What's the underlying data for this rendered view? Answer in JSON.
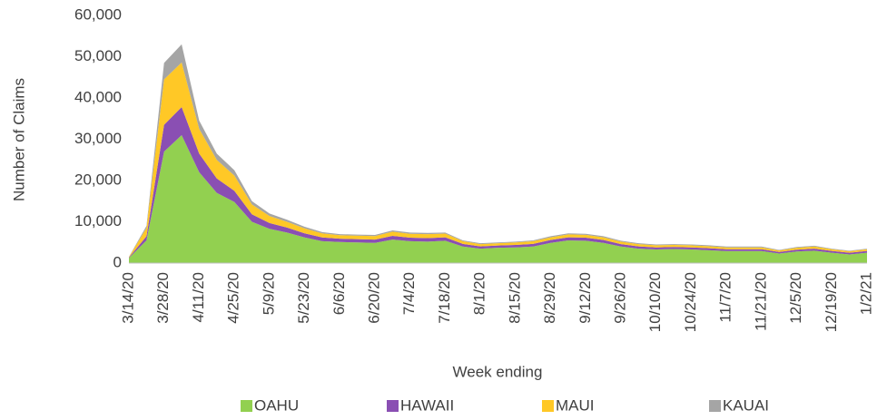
{
  "chart_data": {
    "type": "stacked-area",
    "xlabel": "Week ending",
    "ylabel": "Number of Claims",
    "categories": [
      "3/14/20",
      null,
      "3/28/20",
      null,
      "4/11/20",
      null,
      "4/25/20",
      null,
      "5/9/20",
      null,
      "5/23/20",
      null,
      "6/6/20",
      null,
      "6/20/20",
      null,
      "7/4/20",
      null,
      "7/18/20",
      null,
      "8/1/20",
      null,
      "8/15/20",
      null,
      "8/29/20",
      null,
      "9/12/20",
      null,
      "9/26/20",
      null,
      "10/10/20",
      null,
      "10/24/20",
      null,
      "11/7/20",
      null,
      "11/21/20",
      null,
      "12/5/20",
      null,
      "12/19/20",
      null,
      "1/2/21"
    ],
    "series": [
      {
        "name": "OAHU",
        "color": "#92d050",
        "values": [
          1200,
          5500,
          27000,
          31000,
          22000,
          17000,
          14800,
          10000,
          8300,
          7400,
          6200,
          5300,
          5100,
          5000,
          4900,
          5700,
          5300,
          5200,
          5400,
          4000,
          3500,
          3700,
          3800,
          4000,
          4900,
          5500,
          5400,
          4900,
          4000,
          3500,
          3300,
          3400,
          3300,
          3100,
          2900,
          2900,
          2900,
          2300,
          2800,
          3000,
          2500,
          2100,
          2500
        ]
      },
      {
        "name": "HAWAII",
        "color": "#8a4fb3",
        "values": [
          150,
          1000,
          6500,
          6800,
          4500,
          3500,
          2700,
          1800,
          1400,
          1200,
          1000,
          900,
          800,
          800,
          800,
          900,
          850,
          850,
          850,
          650,
          550,
          550,
          600,
          650,
          700,
          750,
          750,
          700,
          600,
          550,
          500,
          500,
          500,
          500,
          450,
          450,
          450,
          400,
          450,
          500,
          450,
          400,
          450
        ]
      },
      {
        "name": "MAUI",
        "color": "#ffc826",
        "values": [
          100,
          2000,
          11000,
          10800,
          6000,
          4500,
          3700,
          2400,
          1700,
          1400,
          1200,
          1000,
          850,
          850,
          850,
          1000,
          950,
          950,
          900,
          650,
          550,
          550,
          600,
          650,
          650,
          700,
          700,
          650,
          600,
          550,
          500,
          500,
          500,
          500,
          450,
          450,
          450,
          350,
          450,
          500,
          400,
          350,
          400
        ]
      },
      {
        "name": "KAUAI",
        "color": "#a5a5a5",
        "values": [
          50,
          500,
          4000,
          4400,
          2000,
          1500,
          1300,
          800,
          600,
          500,
          400,
          300,
          250,
          250,
          250,
          300,
          300,
          300,
          250,
          200,
          200,
          200,
          200,
          200,
          250,
          250,
          250,
          250,
          200,
          200,
          200,
          200,
          200,
          200,
          200,
          200,
          200,
          150,
          200,
          200,
          150,
          150,
          150
        ]
      }
    ],
    "ylim": [
      0,
      60000
    ],
    "yticks": [
      0,
      {
        "value": 10000,
        "label": "10,000"
      },
      {
        "value": 20000,
        "label": "20,000"
      },
      {
        "value": 30000,
        "label": "30,000"
      },
      {
        "value": 40000,
        "label": "40,000"
      },
      {
        "value": 50000,
        "label": "50,000"
      },
      {
        "value": 60000,
        "label": "60,000"
      }
    ],
    "grid": false,
    "legend": "bottom"
  }
}
